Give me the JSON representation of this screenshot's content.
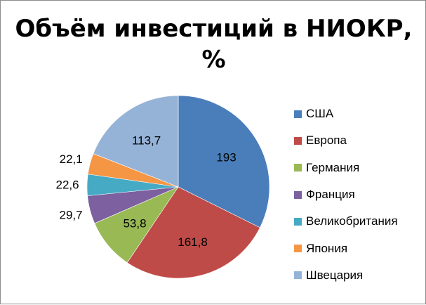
{
  "chart_data": {
    "type": "pie",
    "title": "Объём инвестиций в НИОКР, %",
    "title_lines": [
      "Объём инвестиций в НИОКР,",
      "%"
    ],
    "categories": [
      "США",
      "Европа",
      "Германия",
      "Франция",
      "Великобритания",
      "Япония",
      "Швецария"
    ],
    "values": [
      193,
      161.8,
      53.8,
      29.7,
      22.6,
      22.1,
      113.7
    ],
    "data_labels": [
      "193",
      "161,8",
      "53,8",
      "29,7",
      "22,6",
      "22,1",
      "113,7"
    ],
    "colors": [
      "#4a7ebb",
      "#be4b48",
      "#98b954",
      "#7d60a0",
      "#46aac5",
      "#f59645",
      "#95b3d7"
    ],
    "legend_position": "right",
    "start_angle": "top, clockwise"
  }
}
